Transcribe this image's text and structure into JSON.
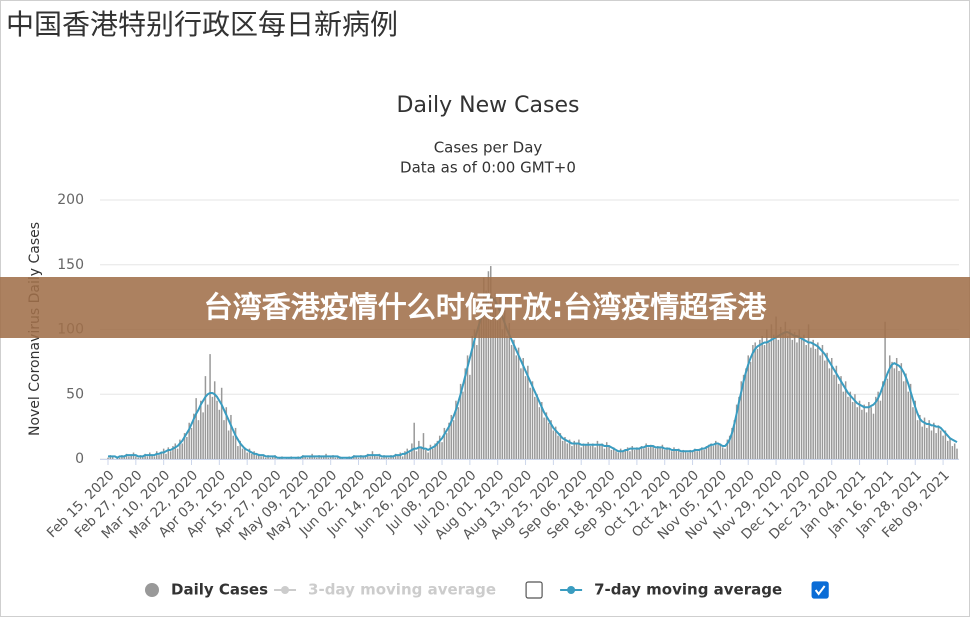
{
  "page_heading": "中国香港特别行政区每日新病例",
  "banner": "台湾香港疫情什么时候开放:台湾疫情超香港",
  "chart_data": {
    "type": "bar",
    "title": "Daily New Cases",
    "subtitle": [
      "Cases per Day",
      "Data as of 0:00 GMT+0"
    ],
    "y_label": "Novel Coronavirus Daily Cases",
    "ylim": [
      0,
      200
    ],
    "yticks": [
      0,
      50,
      100,
      150,
      200
    ],
    "grid": true,
    "legend": "bottom",
    "categories": [
      "Feb 15, 2020",
      null,
      null,
      null,
      null,
      null,
      null,
      null,
      null,
      null,
      null,
      null,
      "Feb 27, 2020",
      null,
      null,
      null,
      null,
      null,
      null,
      null,
      null,
      null,
      null,
      null,
      "Mar 10, 2020",
      null,
      null,
      null,
      null,
      null,
      null,
      null,
      null,
      null,
      null,
      null,
      "Mar 22, 2020",
      null,
      null,
      null,
      null,
      null,
      null,
      null,
      null,
      null,
      null,
      null,
      "Apr 03, 2020",
      null,
      null,
      null,
      null,
      null,
      null,
      null,
      null,
      null,
      null,
      null,
      "Apr 15, 2020",
      null,
      null,
      null,
      null,
      null,
      null,
      null,
      null,
      null,
      null,
      null,
      "Apr 27, 2020",
      null,
      null,
      null,
      null,
      null,
      null,
      null,
      null,
      null,
      null,
      null,
      "May 09, 2020",
      null,
      null,
      null,
      null,
      null,
      null,
      null,
      null,
      null,
      null,
      null,
      "May 21, 2020",
      null,
      null,
      null,
      null,
      null,
      null,
      null,
      null,
      null,
      null,
      null,
      "Jun 02, 2020",
      null,
      null,
      null,
      null,
      null,
      null,
      null,
      null,
      null,
      null,
      null,
      "Jun 14, 2020",
      null,
      null,
      null,
      null,
      null,
      null,
      null,
      null,
      null,
      null,
      null,
      "Jun 26, 2020",
      null,
      null,
      null,
      null,
      null,
      null,
      null,
      null,
      null,
      null,
      null,
      "Jul 08, 2020",
      null,
      null,
      null,
      null,
      null,
      null,
      null,
      null,
      null,
      null,
      null,
      "Jul 20, 2020",
      null,
      null,
      null,
      null,
      null,
      null,
      null,
      null,
      null,
      null,
      null,
      "Aug 01, 2020",
      null,
      null,
      null,
      null,
      null,
      null,
      null,
      null,
      null,
      null,
      null,
      "Aug 13, 2020",
      null,
      null,
      null,
      null,
      null,
      null,
      null,
      null,
      null,
      null,
      null,
      "Aug 25, 2020",
      null,
      null,
      null,
      null,
      null,
      null,
      null,
      null,
      null,
      null,
      null,
      "Sep 06, 2020",
      null,
      null,
      null,
      null,
      null,
      null,
      null,
      null,
      null,
      null,
      null,
      "Sep 18, 2020",
      null,
      null,
      null,
      null,
      null,
      null,
      null,
      null,
      null,
      null,
      null,
      "Sep 30, 2020",
      null,
      null,
      null,
      null,
      null,
      null,
      null,
      null,
      null,
      null,
      null,
      "Oct 12, 2020",
      null,
      null,
      null,
      null,
      null,
      null,
      null,
      null,
      null,
      null,
      null,
      "Oct 24, 2020",
      null,
      null,
      null,
      null,
      null,
      null,
      null,
      null,
      null,
      null,
      null,
      "Nov 05, 2020",
      null,
      null,
      null,
      null,
      null,
      null,
      null,
      null,
      null,
      null,
      null,
      "Nov 17, 2020",
      null,
      null,
      null,
      null,
      null,
      null,
      null,
      null,
      null,
      null,
      null,
      "Nov 29, 2020",
      null,
      null,
      null,
      null,
      null,
      null,
      null,
      null,
      null,
      null,
      null,
      "Dec 11, 2020",
      null,
      null,
      null,
      null,
      null,
      null,
      null,
      null,
      null,
      null,
      null,
      "Dec 23, 2020",
      null,
      null,
      null,
      null,
      null,
      null,
      null,
      null,
      null,
      null,
      null,
      "Jan 04, 2021",
      null,
      null,
      null,
      null,
      null,
      null,
      null,
      null,
      null,
      null,
      null,
      "Jan 16, 2021",
      null,
      null,
      null,
      null,
      null,
      null,
      null,
      null,
      null,
      null,
      null,
      "Jan 28, 2021",
      null,
      null,
      null,
      null,
      null,
      null,
      null,
      null,
      null,
      null,
      null,
      "Feb 09, 2021",
      null,
      null,
      null,
      null,
      null,
      null
    ],
    "series": [
      {
        "name": "Daily Cases",
        "type": "bar",
        "color": "#999999",
        "visible": true,
        "values": [
          1,
          3,
          2,
          0,
          2,
          1,
          3,
          2,
          4,
          2,
          3,
          5,
          2,
          1,
          3,
          2,
          4,
          2,
          5,
          3,
          2,
          6,
          3,
          5,
          8,
          4,
          9,
          6,
          10,
          12,
          8,
          15,
          12,
          20,
          17,
          28,
          24,
          35,
          47,
          30,
          45,
          36,
          64,
          42,
          81,
          48,
          60,
          45,
          38,
          55,
          30,
          40,
          22,
          34,
          18,
          24,
          10,
          14,
          8,
          9,
          5,
          8,
          4,
          6,
          3,
          4,
          2,
          3,
          1,
          3,
          1,
          2,
          3,
          0,
          1,
          2,
          0,
          1,
          1,
          2,
          0,
          1,
          2,
          1,
          3,
          2,
          1,
          2,
          4,
          2,
          1,
          3,
          2,
          2,
          4,
          1,
          2,
          3,
          1,
          2,
          2,
          1,
          0,
          1,
          2,
          1,
          3,
          2,
          1,
          3,
          2,
          3,
          4,
          2,
          6,
          3,
          2,
          4,
          1,
          3,
          2,
          1,
          3,
          2,
          4,
          3,
          5,
          2,
          6,
          8,
          5,
          12,
          28,
          6,
          14,
          9,
          20,
          7,
          5,
          11,
          8,
          12,
          14,
          18,
          13,
          24,
          20,
          28,
          34,
          30,
          45,
          40,
          58,
          52,
          70,
          80,
          65,
          95,
          100,
          88,
          108,
          120,
          140,
          130,
          145,
          149,
          118,
          128,
          110,
          125,
          100,
          115,
          95,
          105,
          88,
          92,
          80,
          86,
          70,
          78,
          64,
          72,
          55,
          60,
          48,
          50,
          40,
          44,
          32,
          36,
          28,
          30,
          22,
          25,
          18,
          20,
          14,
          17,
          12,
          15,
          10,
          14,
          12,
          15,
          9,
          12,
          11,
          13,
          10,
          12,
          9,
          14,
          11,
          12,
          8,
          13,
          10,
          7,
          9,
          6,
          5,
          8,
          6,
          7,
          9,
          6,
          10,
          7,
          9,
          8,
          10,
          8,
          12,
          9,
          11,
          10,
          8,
          10,
          9,
          11,
          7,
          9,
          8,
          6,
          9,
          7,
          8,
          5,
          7,
          6,
          5,
          7,
          6,
          8,
          6,
          8,
          9,
          7,
          10,
          11,
          12,
          10,
          14,
          11,
          12,
          9,
          8,
          15,
          18,
          24,
          30,
          42,
          48,
          60,
          65,
          70,
          80,
          75,
          88,
          90,
          85,
          92,
          95,
          88,
          100,
          90,
          104,
          96,
          110,
          92,
          102,
          98,
          106,
          95,
          100,
          92,
          98,
          90,
          100,
          94,
          96,
          88,
          104,
          86,
          92,
          85,
          90,
          80,
          88,
          76,
          82,
          70,
          78,
          65,
          72,
          58,
          64,
          52,
          60,
          48,
          52,
          44,
          50,
          40,
          45,
          38,
          42,
          36,
          44,
          40,
          35,
          48,
          52,
          45,
          60,
          106,
          62,
          80,
          75,
          70,
          78,
          68,
          74,
          60,
          66,
          52,
          58,
          40,
          45,
          30,
          34,
          25,
          32,
          24,
          30,
          22,
          28,
          20,
          26,
          22,
          18,
          22,
          14,
          16,
          10,
          12,
          8
        ]
      },
      {
        "name": "3-day moving average",
        "type": "line",
        "color": "#cccccc",
        "visible": false,
        "checked": false
      },
      {
        "name": "7-day moving average",
        "type": "line",
        "color": "#3a9cc0",
        "visible": true,
        "checked": true,
        "values": [
          2,
          2,
          2,
          2,
          1,
          2,
          2,
          2,
          3,
          3,
          3,
          3,
          3,
          2,
          2,
          2,
          3,
          3,
          3,
          3,
          3,
          4,
          4,
          5,
          5,
          6,
          7,
          7,
          8,
          9,
          10,
          12,
          14,
          17,
          20,
          23,
          27,
          31,
          35,
          38,
          42,
          45,
          48,
          50,
          51,
          51,
          50,
          48,
          45,
          42,
          38,
          34,
          30,
          26,
          22,
          18,
          15,
          12,
          10,
          8,
          7,
          6,
          5,
          4,
          4,
          3,
          3,
          3,
          2,
          2,
          2,
          2,
          2,
          1,
          1,
          1,
          1,
          1,
          1,
          1,
          1,
          1,
          1,
          1,
          2,
          2,
          2,
          2,
          2,
          2,
          2,
          2,
          2,
          2,
          2,
          2,
          2,
          2,
          2,
          2,
          1,
          1,
          1,
          1,
          1,
          1,
          2,
          2,
          2,
          2,
          2,
          2,
          3,
          3,
          3,
          3,
          3,
          3,
          2,
          2,
          2,
          2,
          2,
          2,
          3,
          3,
          3,
          4,
          4,
          5,
          6,
          7,
          8,
          8,
          9,
          9,
          8,
          8,
          7,
          8,
          9,
          10,
          12,
          14,
          16,
          19,
          22,
          25,
          29,
          33,
          38,
          44,
          50,
          57,
          64,
          71,
          78,
          85,
          92,
          98,
          104,
          110,
          115,
          120,
          124,
          125,
          124,
          122,
          118,
          114,
          110,
          105,
          100,
          96,
          92,
          88,
          84,
          80,
          76,
          72,
          68,
          64,
          60,
          56,
          52,
          48,
          44,
          40,
          36,
          33,
          30,
          27,
          24,
          22,
          20,
          18,
          16,
          15,
          14,
          13,
          12,
          12,
          12,
          12,
          11,
          11,
          11,
          11,
          11,
          11,
          11,
          11,
          11,
          11,
          10,
          10,
          10,
          9,
          8,
          7,
          6,
          6,
          6,
          7,
          7,
          8,
          8,
          8,
          8,
          8,
          9,
          9,
          10,
          10,
          10,
          10,
          9,
          9,
          9,
          9,
          8,
          8,
          8,
          7,
          7,
          7,
          7,
          6,
          6,
          6,
          6,
          6,
          6,
          7,
          7,
          7,
          8,
          8,
          9,
          10,
          11,
          11,
          12,
          12,
          11,
          10,
          10,
          12,
          15,
          20,
          27,
          35,
          44,
          52,
          60,
          67,
          73,
          78,
          82,
          85,
          87,
          88,
          89,
          90,
          90,
          91,
          92,
          93,
          94,
          95,
          96,
          97,
          98,
          98,
          97,
          96,
          95,
          95,
          94,
          93,
          92,
          91,
          90,
          90,
          89,
          88,
          87,
          85,
          83,
          81,
          78,
          75,
          72,
          69,
          66,
          63,
          60,
          57,
          54,
          51,
          49,
          47,
          45,
          43,
          42,
          41,
          40,
          40,
          40,
          41,
          42,
          44,
          47,
          51,
          56,
          61,
          66,
          70,
          73,
          74,
          73,
          72,
          70,
          67,
          63,
          58,
          52,
          46,
          40,
          35,
          31,
          29,
          28,
          27,
          27,
          26,
          26,
          25,
          25,
          24,
          22,
          20,
          18,
          16,
          15,
          14,
          13
        ]
      }
    ]
  }
}
